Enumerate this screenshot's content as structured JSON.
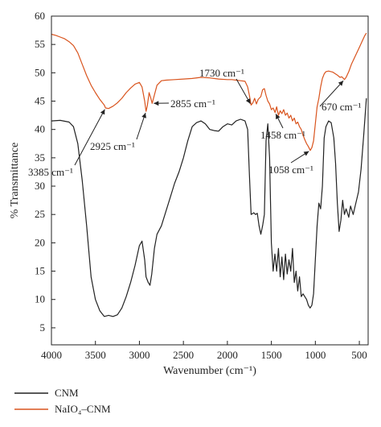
{
  "chart_data": {
    "type": "line",
    "xlabel": "Wavenumber (cm⁻¹)",
    "ylabel": "% Transmittance",
    "xlim": [
      4000,
      400
    ],
    "ylim": [
      2,
      60
    ],
    "x_reversed": true,
    "xticks": [
      4000,
      3500,
      3000,
      2500,
      2000,
      1500,
      1000,
      500
    ],
    "yticks": [
      5,
      10,
      15,
      20,
      25,
      30,
      35,
      40,
      45,
      50,
      55,
      60
    ],
    "legend_position": "bottom-left, below plot",
    "series": [
      {
        "name": "CNM",
        "color": "#222222",
        "points": [
          [
            4000,
            41.5
          ],
          [
            3900,
            41.6
          ],
          [
            3800,
            41.3
          ],
          [
            3750,
            40.5
          ],
          [
            3700,
            37.5
          ],
          [
            3650,
            31
          ],
          [
            3600,
            23
          ],
          [
            3550,
            14
          ],
          [
            3500,
            10
          ],
          [
            3450,
            8
          ],
          [
            3400,
            7
          ],
          [
            3350,
            7.2
          ],
          [
            3300,
            7
          ],
          [
            3250,
            7.3
          ],
          [
            3200,
            8.5
          ],
          [
            3150,
            10.5
          ],
          [
            3100,
            13
          ],
          [
            3050,
            16
          ],
          [
            3000,
            19.5
          ],
          [
            2970,
            20.3
          ],
          [
            2940,
            17
          ],
          [
            2925,
            14
          ],
          [
            2900,
            13
          ],
          [
            2880,
            12.5
          ],
          [
            2860,
            14.5
          ],
          [
            2830,
            19
          ],
          [
            2800,
            21.5
          ],
          [
            2750,
            23
          ],
          [
            2700,
            25.5
          ],
          [
            2650,
            28
          ],
          [
            2600,
            30.5
          ],
          [
            2550,
            32.5
          ],
          [
            2500,
            35
          ],
          [
            2450,
            38
          ],
          [
            2400,
            40.5
          ],
          [
            2350,
            41.2
          ],
          [
            2300,
            41.5
          ],
          [
            2250,
            41
          ],
          [
            2200,
            40
          ],
          [
            2150,
            39.8
          ],
          [
            2100,
            39.7
          ],
          [
            2050,
            40.5
          ],
          [
            2000,
            41
          ],
          [
            1950,
            40.8
          ],
          [
            1900,
            41.5
          ],
          [
            1850,
            41.8
          ],
          [
            1800,
            41.5
          ],
          [
            1770,
            40
          ],
          [
            1750,
            32
          ],
          [
            1730,
            25
          ],
          [
            1700,
            25.3
          ],
          [
            1680,
            25
          ],
          [
            1660,
            25.2
          ],
          [
            1640,
            23
          ],
          [
            1620,
            21.5
          ],
          [
            1600,
            23
          ],
          [
            1580,
            25
          ],
          [
            1560,
            38
          ],
          [
            1540,
            41
          ],
          [
            1520,
            35
          ],
          [
            1500,
            20
          ],
          [
            1480,
            15
          ],
          [
            1460,
            18
          ],
          [
            1440,
            15
          ],
          [
            1420,
            19
          ],
          [
            1400,
            14
          ],
          [
            1380,
            17.5
          ],
          [
            1360,
            13.5
          ],
          [
            1340,
            18
          ],
          [
            1320,
            14.5
          ],
          [
            1300,
            17
          ],
          [
            1280,
            15
          ],
          [
            1260,
            19
          ],
          [
            1240,
            13
          ],
          [
            1220,
            15
          ],
          [
            1200,
            11.5
          ],
          [
            1180,
            14
          ],
          [
            1160,
            10.5
          ],
          [
            1140,
            11
          ],
          [
            1100,
            10
          ],
          [
            1080,
            9
          ],
          [
            1060,
            8.5
          ],
          [
            1040,
            9
          ],
          [
            1020,
            11
          ],
          [
            1000,
            17
          ],
          [
            980,
            23
          ],
          [
            960,
            27
          ],
          [
            940,
            26
          ],
          [
            920,
            30
          ],
          [
            900,
            38.5
          ],
          [
            880,
            40.5
          ],
          [
            850,
            41.5
          ],
          [
            820,
            41.2
          ],
          [
            790,
            38.5
          ],
          [
            770,
            34
          ],
          [
            750,
            27
          ],
          [
            730,
            22
          ],
          [
            710,
            24
          ],
          [
            690,
            27.5
          ],
          [
            670,
            25
          ],
          [
            650,
            26
          ],
          [
            620,
            24.5
          ],
          [
            600,
            26.5
          ],
          [
            570,
            25
          ],
          [
            540,
            27
          ],
          [
            510,
            29
          ],
          [
            480,
            33
          ],
          [
            450,
            39
          ],
          [
            420,
            45.5
          ]
        ]
      },
      {
        "name": "NaIO₄–CNM",
        "color": "#d9541e",
        "points": [
          [
            4000,
            56.8
          ],
          [
            3950,
            56.6
          ],
          [
            3900,
            56.3
          ],
          [
            3850,
            56
          ],
          [
            3800,
            55.5
          ],
          [
            3750,
            54.8
          ],
          [
            3700,
            53.5
          ],
          [
            3650,
            51.5
          ],
          [
            3600,
            49.5
          ],
          [
            3550,
            47.8
          ],
          [
            3500,
            46.5
          ],
          [
            3450,
            45.3
          ],
          [
            3400,
            44.3
          ],
          [
            3385,
            43.8
          ],
          [
            3350,
            43.7
          ],
          [
            3300,
            44.1
          ],
          [
            3250,
            44.7
          ],
          [
            3200,
            45.5
          ],
          [
            3150,
            46.5
          ],
          [
            3100,
            47.3
          ],
          [
            3050,
            48
          ],
          [
            3000,
            48.3
          ],
          [
            2970,
            47.5
          ],
          [
            2940,
            45
          ],
          [
            2925,
            43.2
          ],
          [
            2910,
            44.2
          ],
          [
            2890,
            46.5
          ],
          [
            2870,
            45.5
          ],
          [
            2855,
            44.6
          ],
          [
            2840,
            45.5
          ],
          [
            2800,
            47.8
          ],
          [
            2750,
            48.6
          ],
          [
            2700,
            48.7
          ],
          [
            2600,
            48.8
          ],
          [
            2500,
            48.9
          ],
          [
            2400,
            49
          ],
          [
            2300,
            49.2
          ],
          [
            2200,
            49.1
          ],
          [
            2100,
            48.9
          ],
          [
            2000,
            48.8
          ],
          [
            1950,
            48.8
          ],
          [
            1900,
            48.7
          ],
          [
            1850,
            48.6
          ],
          [
            1800,
            48.5
          ],
          [
            1770,
            47.5
          ],
          [
            1750,
            46
          ],
          [
            1730,
            44.3
          ],
          [
            1710,
            44.7
          ],
          [
            1690,
            45.5
          ],
          [
            1670,
            44.5
          ],
          [
            1650,
            45.3
          ],
          [
            1620,
            45.8
          ],
          [
            1600,
            47
          ],
          [
            1580,
            47.2
          ],
          [
            1560,
            46
          ],
          [
            1540,
            45
          ],
          [
            1520,
            44.5
          ],
          [
            1500,
            43.5
          ],
          [
            1480,
            43.8
          ],
          [
            1458,
            43
          ],
          [
            1440,
            44
          ],
          [
            1420,
            42.5
          ],
          [
            1400,
            43.3
          ],
          [
            1380,
            42.8
          ],
          [
            1360,
            43.5
          ],
          [
            1340,
            42.5
          ],
          [
            1320,
            42.9
          ],
          [
            1300,
            42
          ],
          [
            1280,
            42.5
          ],
          [
            1260,
            41.5
          ],
          [
            1240,
            42
          ],
          [
            1220,
            41
          ],
          [
            1200,
            41.3
          ],
          [
            1180,
            40.5
          ],
          [
            1160,
            40
          ],
          [
            1140,
            39
          ],
          [
            1120,
            38.2
          ],
          [
            1100,
            37.5
          ],
          [
            1080,
            37
          ],
          [
            1058,
            36.3
          ],
          [
            1040,
            36.8
          ],
          [
            1020,
            38
          ],
          [
            1000,
            41
          ],
          [
            980,
            44
          ],
          [
            960,
            45.5
          ],
          [
            940,
            47.5
          ],
          [
            920,
            49
          ],
          [
            900,
            49.8
          ],
          [
            880,
            50.2
          ],
          [
            850,
            50.3
          ],
          [
            800,
            50.1
          ],
          [
            750,
            49.6
          ],
          [
            720,
            49.2
          ],
          [
            700,
            49.3
          ],
          [
            680,
            49
          ],
          [
            670,
            48.8
          ],
          [
            650,
            49.2
          ],
          [
            620,
            50.2
          ],
          [
            590,
            51.5
          ],
          [
            560,
            52.5
          ],
          [
            530,
            53.5
          ],
          [
            500,
            54.5
          ],
          [
            470,
            55.5
          ],
          [
            440,
            56.5
          ],
          [
            420,
            57
          ]
        ]
      }
    ],
    "annotations": [
      {
        "text": "3385 cm⁻¹",
        "x": 3385,
        "y": 43.8
      },
      {
        "text": "2925 cm⁻¹",
        "x": 2925,
        "y": 43.2
      },
      {
        "text": "2855 cm⁻¹",
        "x": 2855,
        "y": 44.6
      },
      {
        "text": "1730 cm⁻¹",
        "x": 1730,
        "y": 44.3
      },
      {
        "text": "1458 cm⁻¹",
        "x": 1458,
        "y": 43
      },
      {
        "text": "1058 cm⁻¹",
        "x": 1058,
        "y": 36.3
      },
      {
        "text": "670 cm⁻¹",
        "x": 670,
        "y": 48.8
      }
    ]
  }
}
